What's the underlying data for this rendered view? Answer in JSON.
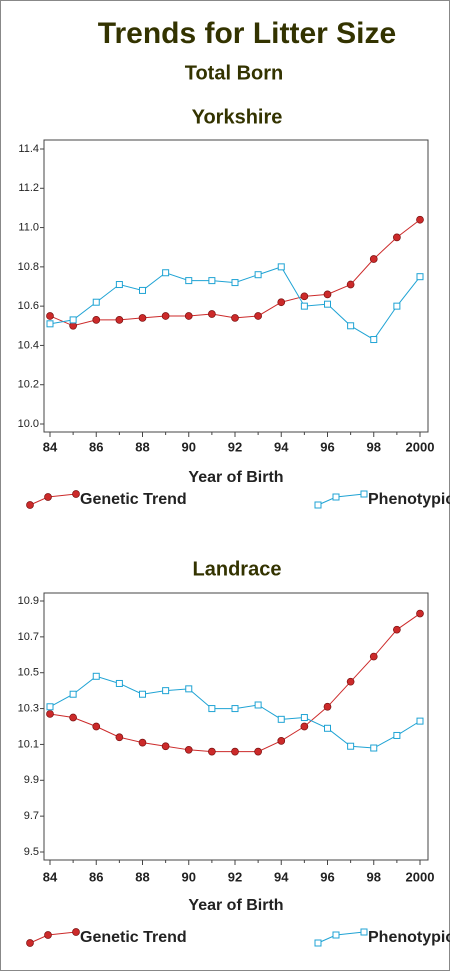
{
  "title": "Trends for Litter Size",
  "subtitle": "Total Born",
  "chart_data": [
    {
      "type": "line",
      "title": "Yorkshire",
      "x_label": "Year of Birth",
      "categories": [
        "84",
        null,
        "86",
        null,
        "88",
        null,
        "90",
        null,
        "92",
        null,
        "94",
        null,
        "96",
        null,
        "98",
        null,
        "2000"
      ],
      "ylim": [
        10.0,
        11.4
      ],
      "yticks": [
        {
          "value": 10.0,
          "label": "10.0"
        },
        10.2,
        10.4,
        10.6,
        10.8,
        {
          "value": 11.0,
          "label": "11.0"
        },
        11.2,
        11.4
      ],
      "series": [
        {
          "name": "Genetic Trend",
          "color": "#cc2a2a",
          "marker": "circle",
          "values": [
            10.55,
            10.5,
            10.53,
            10.53,
            10.54,
            10.55,
            10.55,
            10.56,
            10.54,
            10.55,
            10.62,
            10.65,
            10.66,
            10.71,
            10.84,
            10.95,
            11.04
          ]
        },
        {
          "name": "Phenotypic",
          "color": "#1fa3d4",
          "marker": "square",
          "values": [
            10.51,
            10.53,
            10.62,
            10.71,
            10.68,
            10.77,
            10.73,
            10.73,
            10.72,
            10.76,
            10.8,
            10.6,
            10.61,
            10.5,
            10.43,
            10.6,
            10.75
          ]
        }
      ]
    },
    {
      "type": "line",
      "title": "Landrace",
      "x_label": "Year of Birth",
      "categories": [
        "84",
        null,
        "86",
        null,
        "88",
        null,
        "90",
        null,
        "92",
        null,
        "94",
        null,
        "96",
        null,
        "98",
        null,
        "2000"
      ],
      "ylim": [
        9.5,
        10.9
      ],
      "yticks": [
        9.5,
        9.7,
        9.9,
        10.1,
        10.3,
        10.5,
        10.7,
        10.9
      ],
      "series": [
        {
          "name": "Genetic Trend",
          "color": "#cc2a2a",
          "marker": "circle",
          "values": [
            10.27,
            10.25,
            10.2,
            10.14,
            10.11,
            10.09,
            10.07,
            10.06,
            10.06,
            10.06,
            10.12,
            10.2,
            10.31,
            10.45,
            10.59,
            10.74,
            10.83
          ]
        },
        {
          "name": "Phenotypic",
          "color": "#1fa3d4",
          "marker": "square",
          "values": [
            10.31,
            10.38,
            10.48,
            10.44,
            10.38,
            10.4,
            10.41,
            10.3,
            10.3,
            10.32,
            10.24,
            10.25,
            10.19,
            10.09,
            10.08,
            10.15,
            10.23
          ]
        }
      ]
    }
  ]
}
